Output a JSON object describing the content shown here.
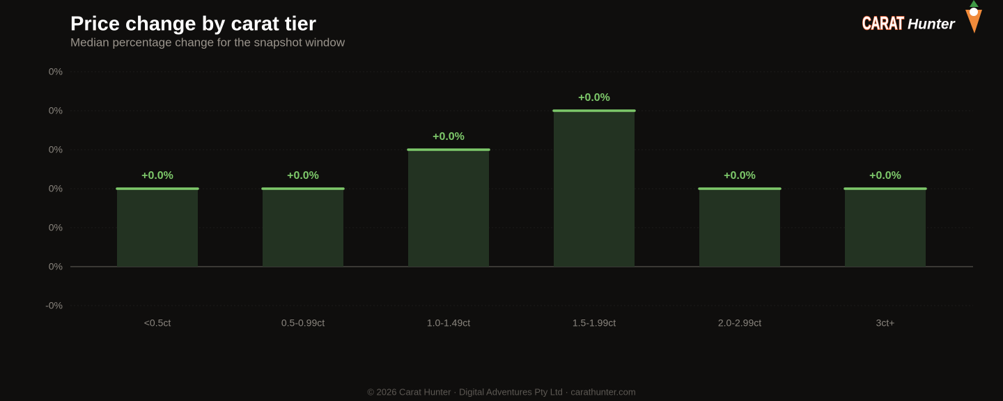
{
  "chart_data": {
    "type": "bar",
    "title": "Price change by carat tier",
    "subtitle": "Median percentage change for the snapshot window",
    "categories": [
      "<0.5ct",
      "0.5-0.99ct",
      "1.0-1.49ct",
      "1.5-1.99ct",
      "2.0-2.99ct",
      "3ct+"
    ],
    "values": [
      0.002,
      0.002,
      0.003,
      0.004,
      0.002,
      0.002
    ],
    "value_labels": [
      "+0.0%",
      "+0.0%",
      "+0.0%",
      "+0.0%",
      "+0.0%",
      "+0.0%"
    ],
    "color": "#7dc86a",
    "ylim": [
      -0.001,
      0.005
    ],
    "yticks": [
      {
        "value": -0.001,
        "label": "-0%"
      },
      {
        "value": 0,
        "label": "0%"
      },
      {
        "value": 0.001,
        "label": "0%"
      },
      {
        "value": 0.002,
        "label": "0%"
      },
      {
        "value": 0.003,
        "label": "0%"
      },
      {
        "value": 0.004,
        "label": "0%"
      },
      {
        "value": 0.005,
        "label": "0%"
      }
    ],
    "grid": true
  },
  "logo": {
    "brand": "CARAT",
    "name": "Hunter"
  },
  "footer": "© 2026 Carat Hunter · Digital Adventures Pty Ltd · carathunter.com"
}
